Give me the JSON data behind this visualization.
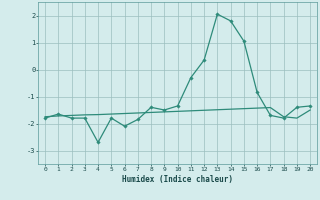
{
  "xlabel": "Humidex (Indice chaleur)",
  "x": [
    0,
    1,
    2,
    3,
    4,
    5,
    6,
    7,
    8,
    9,
    10,
    11,
    12,
    13,
    14,
    15,
    16,
    17,
    18,
    19,
    20
  ],
  "line1": [
    -1.8,
    -1.65,
    -1.8,
    -1.8,
    -2.7,
    -1.8,
    -2.1,
    -1.85,
    -1.4,
    -1.5,
    -1.35,
    -0.3,
    0.35,
    2.05,
    1.8,
    1.05,
    -0.85,
    -1.7,
    -1.8,
    -1.4,
    -1.35
  ],
  "line2": [
    -1.75,
    -1.72,
    -1.7,
    -1.68,
    -1.67,
    -1.65,
    -1.63,
    -1.61,
    -1.59,
    -1.57,
    -1.55,
    -1.53,
    -1.51,
    -1.49,
    -1.47,
    -1.45,
    -1.43,
    -1.41,
    -1.75,
    -1.8,
    -1.5
  ],
  "line1_color": "#2e8b7a",
  "line2_color": "#2e8b7a",
  "bg_color": "#d4ecec",
  "grid_color": "#9bbfbf",
  "ylim": [
    -3.5,
    2.5
  ],
  "yticks": [
    -3,
    -2,
    -1,
    0,
    1,
    2
  ],
  "xlim": [
    -0.5,
    20.5
  ],
  "figsize": [
    3.2,
    2.0
  ],
  "dpi": 100
}
